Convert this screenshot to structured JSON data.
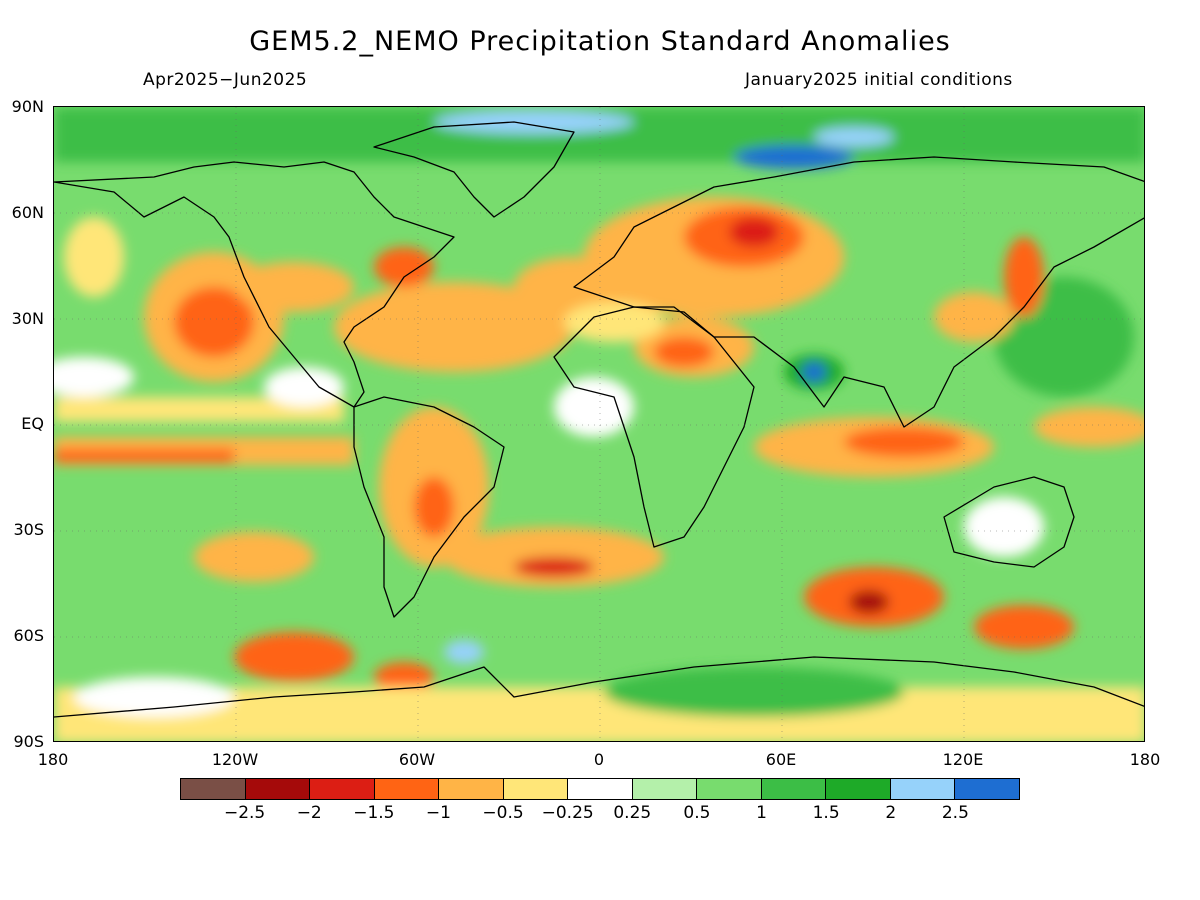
{
  "map": {
    "title": "GEM5.2_NEMO Precipitation Standard Anomalies",
    "period": "Apr2025−Jun2025",
    "initial_conditions": "January2025 initial conditions",
    "projection": "cylindrical equidistant, global",
    "lat_labels": [
      "90N",
      "60N",
      "30N",
      "EQ",
      "30S",
      "60S",
      "90S"
    ],
    "lon_labels": [
      "180",
      "120W",
      "60W",
      "0",
      "60E",
      "120E",
      "180"
    ],
    "colorbar": {
      "colors": [
        "#7a4f46",
        "#a50a0a",
        "#dc1e14",
        "#ff6414",
        "#ffb446",
        "#ffe678",
        "#ffffff",
        "#b4f0aa",
        "#78dc6e",
        "#3cbe46",
        "#1eaa28",
        "#96d2fa",
        "#1e6ed2"
      ],
      "labels": [
        "−2.5",
        "−2",
        "−1.5",
        "−1",
        "−0.5",
        "−0.25",
        "0.25",
        "0.5",
        "1",
        "1.5",
        "2",
        "2.5"
      ]
    }
  }
}
